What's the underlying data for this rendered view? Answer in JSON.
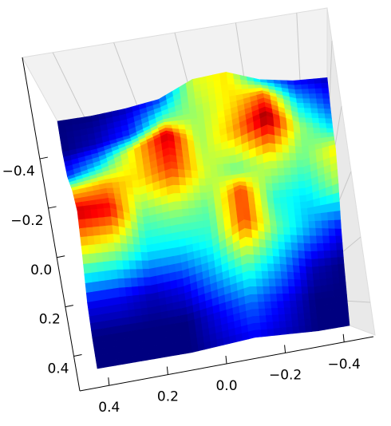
{
  "chart_data": {
    "type": "surface",
    "colormap": "jet",
    "xlim": [
      -0.5,
      0.5
    ],
    "ylim": [
      -0.5,
      0.5
    ],
    "x_inverted": true,
    "xticks": [
      {
        "value": -0.4,
        "label": "−0.4"
      },
      {
        "value": -0.2,
        "label": "−0.2"
      },
      {
        "value": 0,
        "label": "0.0"
      },
      0.2,
      0.4
    ],
    "yticks": [
      {
        "value": -0.4,
        "label": "−0.4"
      },
      {
        "value": -0.2,
        "label": "−0.2"
      },
      {
        "value": 0,
        "label": "0.0"
      },
      0.2,
      0.4
    ],
    "x": [
      -0.5,
      -0.375,
      -0.25,
      -0.125,
      0,
      0.125,
      0.25,
      0.375,
      0.5
    ],
    "y": [
      -0.5,
      -0.375,
      -0.25,
      -0.125,
      0,
      0.125,
      0.25,
      0.375,
      0.5
    ],
    "z": [
      [
        0.1,
        0.15,
        0.3,
        0.6,
        0.55,
        0.2,
        0.1,
        0.05,
        0.05
      ],
      [
        0.2,
        0.35,
        0.7,
        0.6,
        0.5,
        0.45,
        0.2,
        0.1,
        0.05
      ],
      [
        0.35,
        0.5,
        0.9,
        0.65,
        0.5,
        0.85,
        0.6,
        0.35,
        0.2
      ],
      [
        0.6,
        0.45,
        0.55,
        0.45,
        0.55,
        0.75,
        0.6,
        0.65,
        0.6
      ],
      [
        0.5,
        0.35,
        0.4,
        0.75,
        0.45,
        0.5,
        0.45,
        0.8,
        0.85
      ],
      [
        0.15,
        0.3,
        0.45,
        0.75,
        0.4,
        0.35,
        0.35,
        0.5,
        0.55
      ],
      [
        0.05,
        0.1,
        0.3,
        0.45,
        0.3,
        0.15,
        0.1,
        0.15,
        0.15
      ],
      [
        0.05,
        0.05,
        0.15,
        0.25,
        0.15,
        0.05,
        0.05,
        0.05,
        0.05
      ],
      [
        0.05,
        0.05,
        0.1,
        0.15,
        0.1,
        0.05,
        0.05,
        0.05,
        0.05
      ]
    ],
    "grid": true
  }
}
